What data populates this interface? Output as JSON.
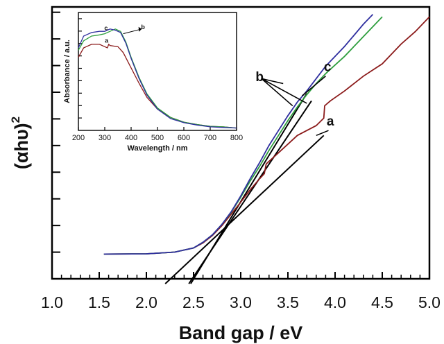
{
  "chart_data": [
    {
      "type": "line",
      "title": "",
      "xlabel": "Band gap / eV",
      "ylabel": "(αhυ)",
      "ylabel_superscript": "2",
      "xlim": [
        1.0,
        5.0
      ],
      "ylim": [
        0,
        1.1
      ],
      "xticks": [
        "1.0",
        "1.5",
        "2.0",
        "2.5",
        "3.0",
        "3.5",
        "4.0",
        "4.5",
        "5.0"
      ],
      "yticks_labeled": false,
      "grid": false,
      "legend": "none",
      "colors": {
        "a": "#8b1a1a",
        "b": "#2e9e3e",
        "c": "#2f2f9f",
        "tangent": "#000000"
      },
      "series": [
        {
          "name": "a",
          "x": [
            1.55,
            2.0,
            2.3,
            2.5,
            2.6,
            2.7,
            2.8,
            2.9,
            3.0,
            3.1,
            3.2,
            3.25,
            3.27,
            3.4,
            3.5,
            3.6,
            3.7,
            3.8,
            3.88,
            3.89,
            3.95,
            4.1,
            4.3,
            4.5,
            4.7,
            4.85,
            5.0
          ],
          "y": [
            0.1,
            0.101,
            0.108,
            0.125,
            0.145,
            0.175,
            0.215,
            0.262,
            0.31,
            0.36,
            0.405,
            0.425,
            0.465,
            0.51,
            0.545,
            0.58,
            0.6,
            0.62,
            0.65,
            0.7,
            0.72,
            0.76,
            0.82,
            0.87,
            0.95,
            1.0,
            1.06
          ]
        },
        {
          "name": "b",
          "x": [
            1.55,
            2.0,
            2.3,
            2.5,
            2.6,
            2.7,
            2.8,
            2.9,
            3.0,
            3.1,
            3.2,
            3.3,
            3.4,
            3.5,
            3.6,
            3.7,
            3.8,
            3.9,
            4.0,
            4.1,
            4.2,
            4.3,
            4.4,
            4.5
          ],
          "y": [
            0.1,
            0.101,
            0.108,
            0.125,
            0.148,
            0.178,
            0.22,
            0.27,
            0.33,
            0.395,
            0.455,
            0.52,
            0.58,
            0.64,
            0.695,
            0.745,
            0.79,
            0.83,
            0.865,
            0.9,
            0.94,
            0.98,
            1.02,
            1.06
          ]
        },
        {
          "name": "c",
          "x": [
            1.55,
            2.0,
            2.3,
            2.5,
            2.6,
            2.7,
            2.8,
            2.9,
            3.0,
            3.1,
            3.2,
            3.3,
            3.4,
            3.5,
            3.6,
            3.7,
            3.8,
            3.9,
            4.0,
            4.1,
            4.2,
            4.3,
            4.4
          ],
          "y": [
            0.1,
            0.101,
            0.108,
            0.125,
            0.148,
            0.178,
            0.22,
            0.272,
            0.335,
            0.405,
            0.47,
            0.54,
            0.6,
            0.66,
            0.715,
            0.76,
            0.81,
            0.86,
            0.9,
            0.94,
            0.985,
            1.03,
            1.07
          ]
        }
      ],
      "tangent_lines": [
        {
          "name": "a",
          "x": [
            2.2,
            3.88
          ],
          "y": [
            -0.02,
            0.58
          ]
        },
        {
          "name": "b",
          "x": [
            2.45,
            3.75
          ],
          "y": [
            -0.02,
            0.72
          ]
        },
        {
          "name": "c",
          "x": [
            2.47,
            3.7
          ],
          "y": [
            -0.02,
            0.75
          ]
        }
      ],
      "annotations": [
        {
          "text": "a",
          "x": 3.95,
          "y": 0.62
        },
        {
          "text": "b",
          "x": 3.2,
          "y": 0.8
        },
        {
          "text": "c",
          "x": 3.92,
          "y": 0.84
        }
      ]
    },
    {
      "type": "line",
      "title": "",
      "xlabel": "Wavelength / nm",
      "ylabel": "Absorbance / a.u.",
      "xlim": [
        200,
        800
      ],
      "xticks": [
        "200",
        "300",
        "400",
        "500",
        "600",
        "700",
        "800"
      ],
      "ylim": [
        0,
        1.0
      ],
      "yticks_labeled": false,
      "legend": "none",
      "series": [
        {
          "name": "a",
          "x": [
            200,
            220,
            250,
            280,
            300,
            310,
            315,
            320,
            350,
            370,
            400,
            430,
            460,
            500,
            550,
            600,
            650,
            700,
            750,
            800
          ],
          "y": [
            0.62,
            0.7,
            0.73,
            0.73,
            0.71,
            0.7,
            0.73,
            0.72,
            0.71,
            0.66,
            0.53,
            0.4,
            0.28,
            0.18,
            0.11,
            0.07,
            0.05,
            0.035,
            0.03,
            0.02
          ]
        },
        {
          "name": "b",
          "x": [
            200,
            220,
            250,
            280,
            300,
            320,
            340,
            360,
            380,
            400,
            430,
            460,
            500,
            550,
            600,
            650,
            700,
            750,
            800
          ],
          "y": [
            0.68,
            0.76,
            0.8,
            0.81,
            0.82,
            0.84,
            0.86,
            0.84,
            0.75,
            0.62,
            0.45,
            0.31,
            0.19,
            0.11,
            0.07,
            0.05,
            0.035,
            0.03,
            0.02
          ]
        },
        {
          "name": "c",
          "x": [
            200,
            220,
            250,
            280,
            300,
            320,
            340,
            360,
            380,
            400,
            430,
            460,
            500,
            550,
            600,
            650,
            700,
            750,
            800
          ],
          "y": [
            0.7,
            0.8,
            0.83,
            0.84,
            0.84,
            0.86,
            0.85,
            0.83,
            0.74,
            0.61,
            0.44,
            0.3,
            0.18,
            0.1,
            0.065,
            0.045,
            0.03,
            0.025,
            0.02
          ]
        }
      ],
      "annotations": [
        {
          "text": "a",
          "x": 307,
          "y": 0.745
        },
        {
          "text": "b",
          "x": 445,
          "y": 0.86
        },
        {
          "text": "c",
          "x": 305,
          "y": 0.85
        }
      ]
    }
  ]
}
